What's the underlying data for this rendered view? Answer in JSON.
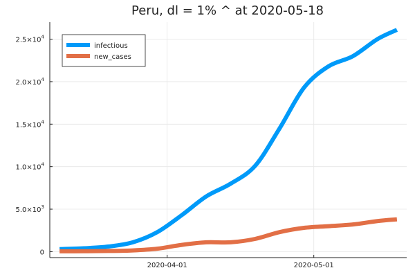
{
  "chart_data": {
    "type": "line",
    "title": "Peru,  dl = 1% ^ at 2020-05-18",
    "xlabel": "",
    "ylabel": "",
    "x": [
      "2020-03-10",
      "2020-03-15",
      "2020-03-20",
      "2020-03-25",
      "2020-03-30",
      "2020-04-04",
      "2020-04-09",
      "2020-04-14",
      "2020-04-19",
      "2020-04-24",
      "2020-04-29",
      "2020-05-04",
      "2020-05-09",
      "2020-05-14",
      "2020-05-18"
    ],
    "xlim": [
      "2020-03-08",
      "2020-05-20"
    ],
    "x_ticks": [
      {
        "value": "2020-04-01",
        "label": "2020-04-01"
      },
      {
        "value": "2020-05-01",
        "label": "2020-05-01"
      }
    ],
    "ylim": [
      -700,
      27000
    ],
    "y_ticks": [
      {
        "value": 0,
        "mantissa": "0",
        "exponent": ""
      },
      {
        "value": 5000,
        "mantissa": "5.0×10",
        "exponent": "3"
      },
      {
        "value": 10000,
        "mantissa": "1.0×10",
        "exponent": "4"
      },
      {
        "value": 15000,
        "mantissa": "1.5×10",
        "exponent": "4"
      },
      {
        "value": 20000,
        "mantissa": "2.0×10",
        "exponent": "4"
      },
      {
        "value": 25000,
        "mantissa": "2.5×10",
        "exponent": "4"
      }
    ],
    "grid": true,
    "legend_position": "top-left",
    "series": [
      {
        "name": "infectious",
        "color": "#009af9",
        "values": [
          300,
          400,
          600,
          1100,
          2300,
          4300,
          6500,
          8000,
          10100,
          14500,
          19300,
          21800,
          23000,
          25000,
          26100
        ]
      },
      {
        "name": "new_cases",
        "color": "#e26f46",
        "values": [
          40,
          50,
          80,
          150,
          350,
          800,
          1100,
          1100,
          1500,
          2300,
          2800,
          3000,
          3200,
          3600,
          3800
        ]
      }
    ]
  }
}
